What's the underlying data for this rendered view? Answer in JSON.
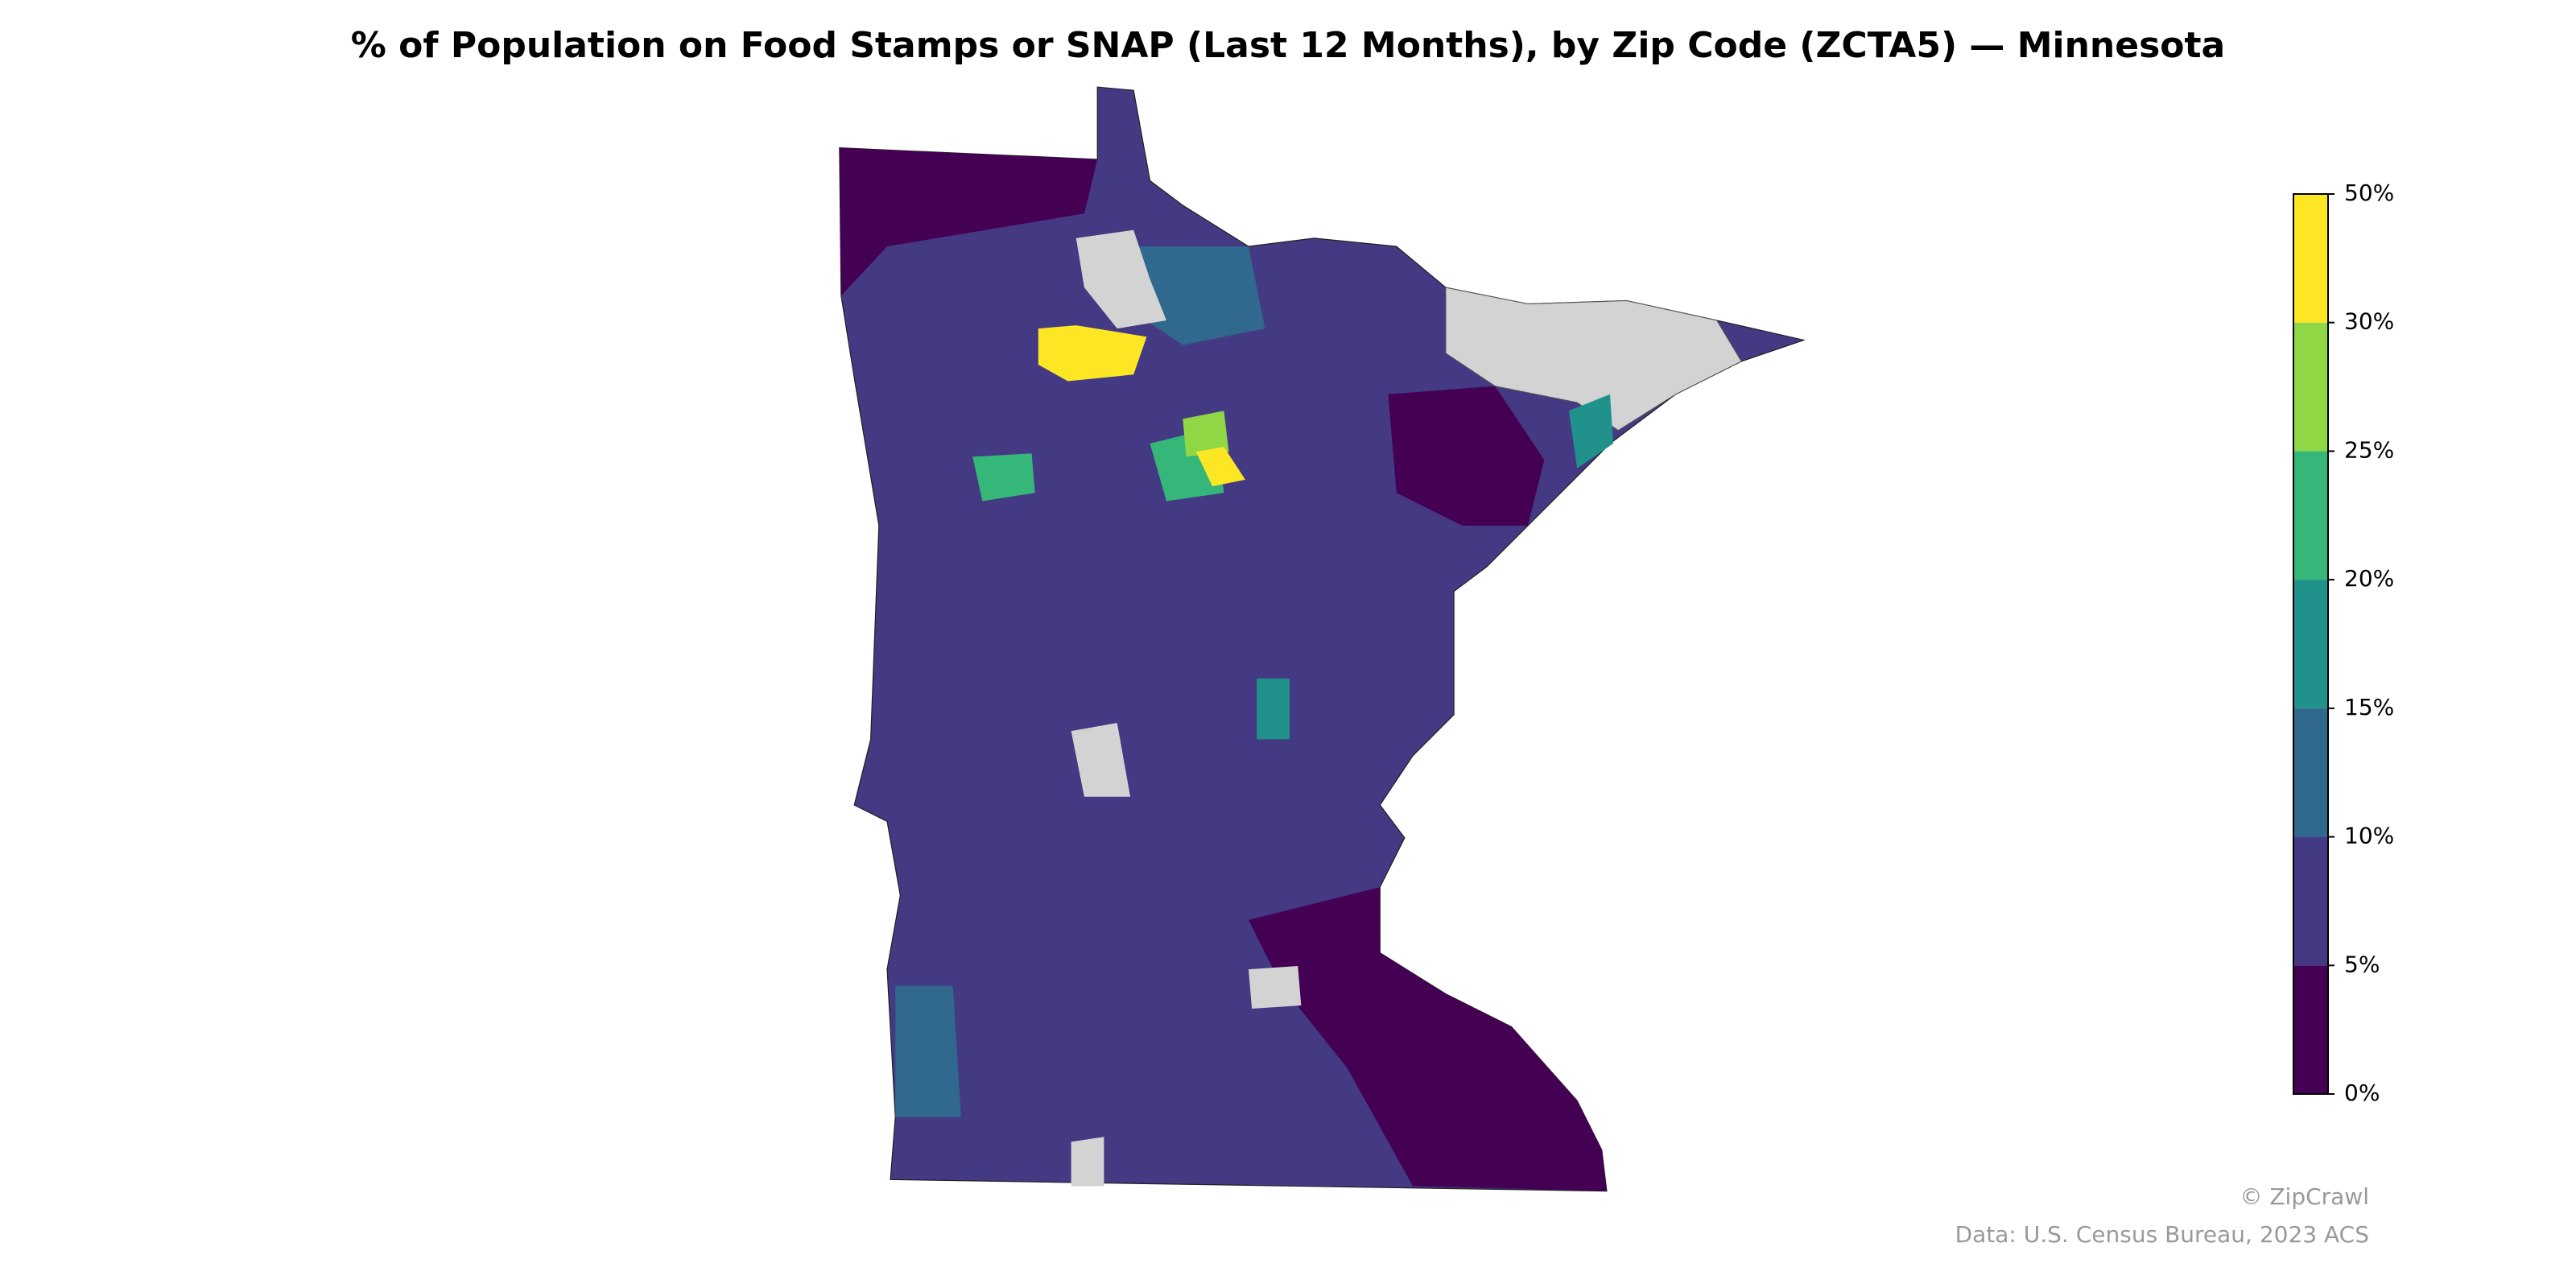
{
  "title": "% of Population on Food Stamps or SNAP (Last 12 Months), by Zip Code (ZCTA5) — Minnesota",
  "colorbar": {
    "ticks": [
      {
        "value": 0,
        "label": "0%"
      },
      {
        "value": 5,
        "label": "5%"
      },
      {
        "value": 10,
        "label": "10%"
      },
      {
        "value": 15,
        "label": "15%"
      },
      {
        "value": 20,
        "label": "20%"
      },
      {
        "value": 25,
        "label": "25%"
      },
      {
        "value": 30,
        "label": "30%"
      },
      {
        "value": 50,
        "label": "50%"
      }
    ],
    "colors": [
      "#440154",
      "#443983",
      "#31688e",
      "#21918c",
      "#35b779",
      "#8fd744",
      "#fde725"
    ]
  },
  "credit": "© ZipCrawl",
  "source": "Data: U.S. Census Bureau, 2023 ACS"
}
